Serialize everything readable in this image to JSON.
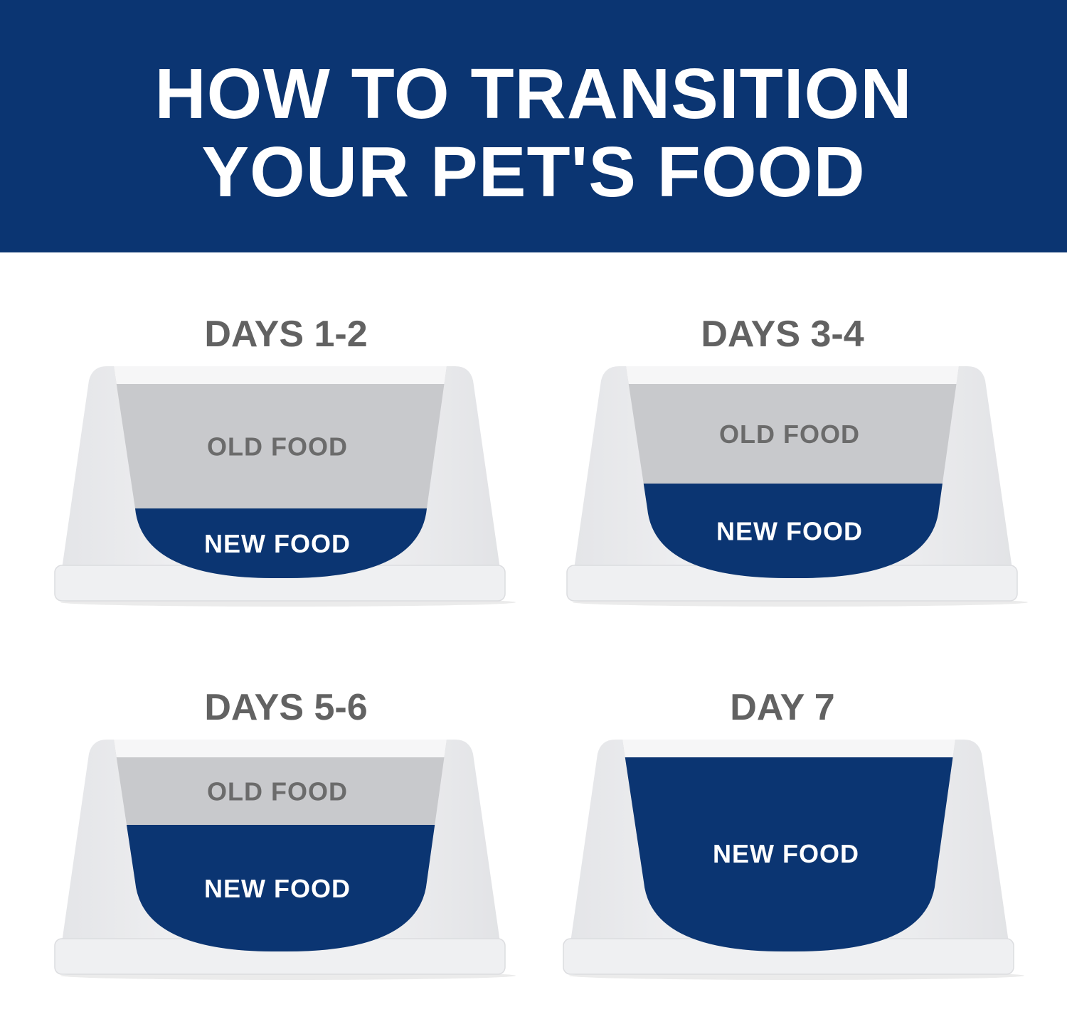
{
  "header": {
    "title_line1": "HOW TO TRANSITION",
    "title_line2": "YOUR PET'S FOOD"
  },
  "colors": {
    "navy": "#0b3572",
    "old_food": "#c8c9cc",
    "old_food_text": "#6b6b6b",
    "new_food_text": "#ffffff",
    "bowl": "#eeeff1",
    "title_text": "#626262"
  },
  "steps": [
    {
      "title": "DAYS 1-2",
      "old_label": "OLD FOOD",
      "new_label": "NEW FOOD",
      "new_food_percent": 25
    },
    {
      "title": "DAYS 3-4",
      "old_label": "OLD FOOD",
      "new_label": "NEW FOOD",
      "new_food_percent": 50
    },
    {
      "title": "DAYS 5-6",
      "old_label": "OLD FOOD",
      "new_label": "NEW FOOD",
      "new_food_percent": 75
    },
    {
      "title": "DAY 7",
      "old_label": "",
      "new_label": "NEW FOOD",
      "new_food_percent": 100
    }
  ]
}
